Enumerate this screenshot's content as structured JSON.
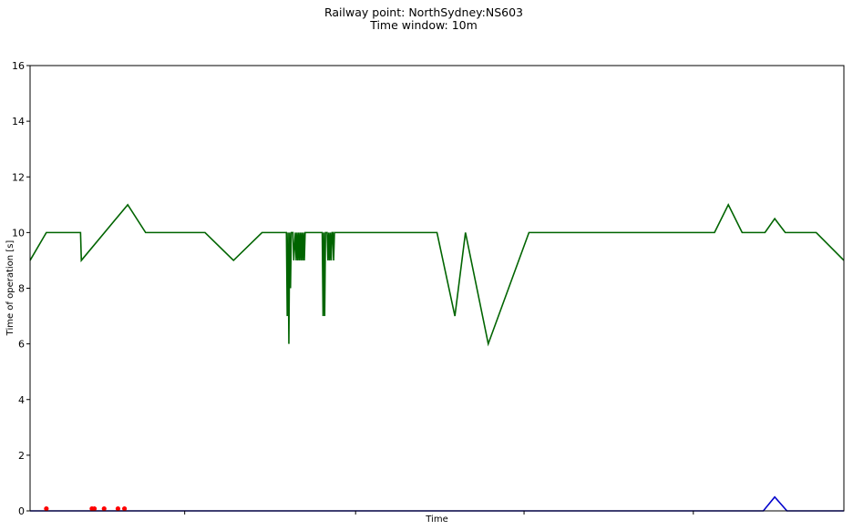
{
  "chart_data": {
    "type": "line",
    "title": "Railway point: NorthSydney:NS603",
    "subtitle": "Time window: 10m",
    "xlabel": "Time",
    "ylabel": "Time of operation [s]",
    "ylim": [
      0,
      16
    ],
    "xlim": [
      0,
      100
    ],
    "yticks": [
      0,
      2,
      4,
      6,
      8,
      10,
      12,
      14,
      16
    ],
    "xticks": [
      19,
      40,
      60.7,
      81.5
    ],
    "grid": false,
    "legend": "none",
    "series": [
      {
        "color": "#006400",
        "x": [
          0,
          2,
          6.2,
          6.3,
          12,
          14.2,
          21.5,
          25,
          28.5,
          31.5,
          31.6,
          31.7,
          31.8,
          31.9,
          32.0,
          32.1,
          32.2,
          32.3,
          32.4,
          32.6,
          32.7,
          32.8,
          32.9,
          33.0,
          33.1,
          33.2,
          33.3,
          33.4,
          33.5,
          33.6,
          33.7,
          33.8,
          33.9,
          34.0,
          34.1,
          34.2,
          34.3,
          34.4,
          34.5,
          34.6,
          34.7,
          34.8,
          34.9,
          35.0,
          35.1,
          35.2,
          35.3,
          35.4,
          35.5,
          35.6,
          35.7,
          35.8,
          35.9,
          36.0,
          36.1,
          36.2,
          36.3,
          36.4,
          36.5,
          36.6,
          36.7,
          36.8,
          36.9,
          37.0,
          37.1,
          37.2,
          37.3,
          37.4,
          37.5,
          50,
          52.2,
          53.5,
          56.3,
          61.3,
          84.1,
          85.8,
          87.5,
          90.3,
          91.5,
          92.8,
          96.6,
          100
        ],
        "values": [
          9,
          10,
          10,
          9,
          11,
          10,
          10,
          9,
          10,
          10,
          7,
          10,
          6,
          10,
          8,
          10,
          10,
          10,
          9,
          10,
          9,
          10,
          9,
          10,
          9,
          10,
          9,
          10,
          9,
          10,
          9,
          10,
          10,
          10,
          10,
          10,
          10,
          10,
          10,
          10,
          10,
          10,
          10,
          10,
          10,
          10,
          10,
          10,
          10,
          10,
          10,
          10,
          10,
          7,
          10,
          7,
          10,
          10,
          10,
          9,
          10,
          9,
          10,
          9,
          10,
          10,
          9,
          10,
          10,
          10,
          7,
          10,
          6,
          10,
          10,
          11,
          10,
          10,
          10.5,
          10,
          10,
          9
        ]
      },
      {
        "color": "#0000cc",
        "x": [
          0,
          90.1,
          91.5,
          93,
          100
        ],
        "values": [
          0,
          0,
          0.5,
          0,
          0
        ]
      },
      {
        "color": "#ff0000",
        "type": "scatter",
        "x": [
          2.0,
          7.6,
          7.9,
          9.1,
          10.8,
          11.6
        ],
        "values": [
          0.08,
          0.08,
          0.08,
          0.08,
          0.08,
          0.08
        ]
      }
    ]
  }
}
